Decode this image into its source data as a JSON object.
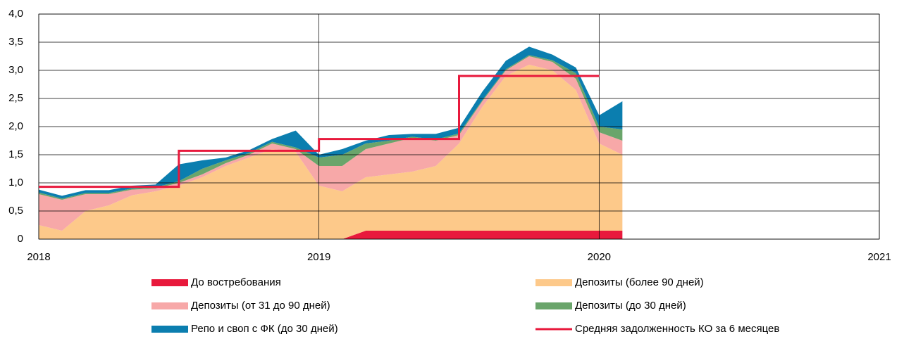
{
  "chart_data": {
    "type": "area",
    "x": [
      2018.0,
      2018.083,
      2018.167,
      2018.25,
      2018.333,
      2018.417,
      2018.5,
      2018.583,
      2018.667,
      2018.75,
      2018.833,
      2018.917,
      2019.0,
      2019.083,
      2019.167,
      2019.25,
      2019.333,
      2019.417,
      2019.5,
      2019.583,
      2019.667,
      2019.75,
      2019.833,
      2019.917,
      2020.0,
      2020.083
    ],
    "series": [
      {
        "name": "До востребования",
        "color": "#e8193c",
        "values": [
          0,
          0,
          0,
          0,
          0,
          0,
          0,
          0,
          0,
          0,
          0,
          0,
          0,
          0,
          0.15,
          0.15,
          0.15,
          0.15,
          0.15,
          0.15,
          0.15,
          0.15,
          0.15,
          0.15,
          0.15,
          0.15
        ]
      },
      {
        "name": "Депозиты (более 90 дней)",
        "color": "#fdc98a",
        "values": [
          0.25,
          0.15,
          0.5,
          0.6,
          0.78,
          0.85,
          0.95,
          1.1,
          1.3,
          1.45,
          1.6,
          1.55,
          0.95,
          0.85,
          0.95,
          1.0,
          1.05,
          1.15,
          1.55,
          2.2,
          2.75,
          2.95,
          2.85,
          2.5,
          1.55,
          1.35
        ]
      },
      {
        "name": "Депозиты (от 31 до 90 дней)",
        "color": "#f7a8a8",
        "values": [
          0.55,
          0.55,
          0.3,
          0.2,
          0.1,
          0.05,
          0.05,
          0.05,
          0.05,
          0.05,
          0.1,
          0.05,
          0.35,
          0.45,
          0.5,
          0.55,
          0.6,
          0.45,
          0.15,
          0.1,
          0.1,
          0.15,
          0.15,
          0.2,
          0.2,
          0.25
        ]
      },
      {
        "name": "Депозиты (до 30 дней)",
        "color": "#6aa56b",
        "values": [
          0.03,
          0.02,
          0.02,
          0.02,
          0.02,
          0.02,
          0.03,
          0.1,
          0.05,
          0.03,
          0.03,
          0.03,
          0.15,
          0.2,
          0.1,
          0.05,
          0.02,
          0.02,
          0.03,
          0.02,
          0.02,
          0.02,
          0.03,
          0.1,
          0.1,
          0.2
        ]
      },
      {
        "name": "Репо и своп с ФК (до 30 дней)",
        "color": "#0b7eaf",
        "values": [
          0.05,
          0.05,
          0.05,
          0.05,
          0.05,
          0.05,
          0.3,
          0.15,
          0.05,
          0.05,
          0.05,
          0.3,
          0.05,
          0.1,
          0.05,
          0.1,
          0.05,
          0.1,
          0.1,
          0.15,
          0.15,
          0.15,
          0.1,
          0.1,
          0.2,
          0.5
        ]
      },
      {
        "name": "Средняя задолженность КО за 6 месяцев",
        "color": "#e8193c",
        "type": "line",
        "x": [
          2018.0,
          2018.5,
          2019.0,
          2019.5,
          2020.0
        ],
        "values": [
          0.93,
          1.57,
          1.78,
          2.9,
          2.9
        ]
      }
    ],
    "xlim": [
      2018,
      2021
    ],
    "xticks": [
      2018,
      2019,
      2020,
      2021
    ],
    "ylim": [
      0,
      4
    ],
    "yticks": [
      0,
      {
        "value": 0.5,
        "label": "0,5"
      },
      {
        "value": 1.0,
        "label": "1,0"
      },
      {
        "value": 1.5,
        "label": "1,5"
      },
      {
        "value": 2.0,
        "label": "2,0"
      },
      {
        "value": 2.5,
        "label": "2,5"
      },
      {
        "value": 3.0,
        "label": "3,0"
      },
      {
        "value": 3.5,
        "label": "3,5"
      },
      {
        "value": 4.0,
        "label": "4,0"
      }
    ],
    "grid": true
  }
}
